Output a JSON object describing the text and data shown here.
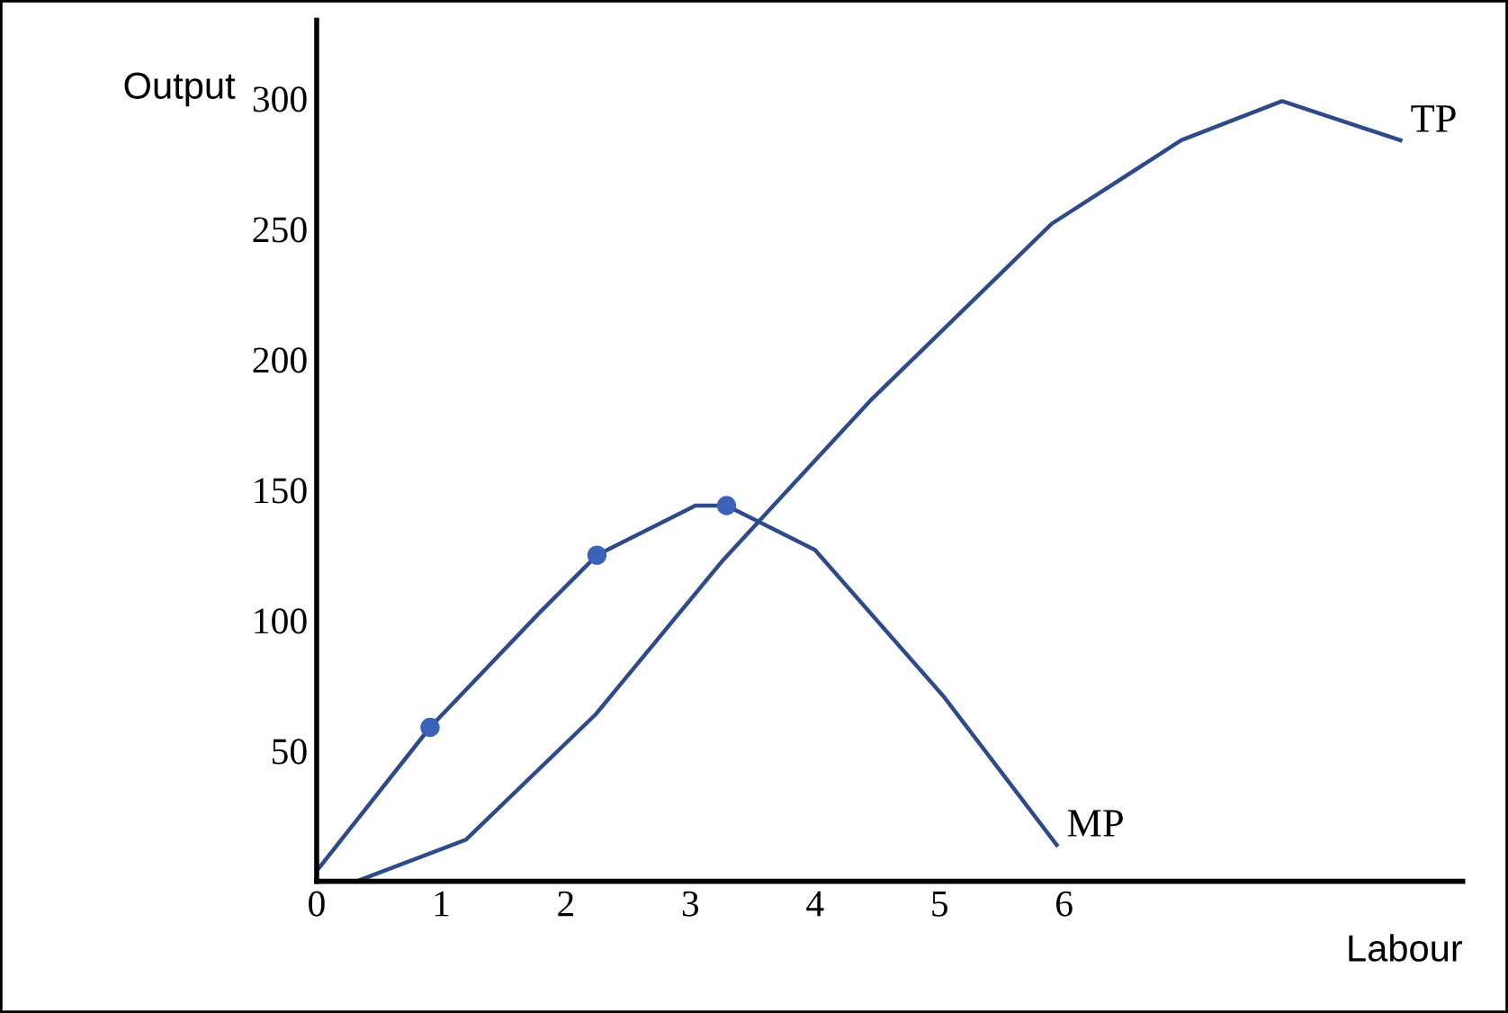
{
  "chart_data": {
    "type": "line",
    "xlabel": "Labour",
    "ylabel": "Output",
    "xlim": [
      0,
      9.2
    ],
    "ylim": [
      0,
      330
    ],
    "xticks": [
      0,
      1,
      2,
      3,
      4,
      5,
      6
    ],
    "yticks": [
      50,
      100,
      150,
      200,
      250,
      300
    ],
    "grid": false,
    "legend": false,
    "marker": "none",
    "line_style": "solid",
    "series": [
      {
        "name": "TP",
        "color": "#2e4a8b",
        "x": [
          0,
          0.32,
          1.2,
          2.24,
          3.26,
          4.44,
          5.9,
          6.94,
          7.75,
          8.7
        ],
        "values": [
          0,
          0,
          16,
          64,
          123,
          184,
          252,
          284,
          299,
          284
        ]
      },
      {
        "name": "MP",
        "color": "#2e4a8b",
        "x": [
          0,
          0.91,
          1.79,
          2.25,
          3.04,
          3.29,
          4,
          5.03,
          5.94
        ],
        "values": [
          4,
          59,
          103,
          125,
          144,
          144,
          127,
          71,
          14
        ]
      },
      {
        "type": "scatter",
        "color": "#3a62b8",
        "marker": "circle",
        "x": [
          0.91,
          2.25,
          3.29
        ],
        "values": [
          59,
          125,
          144
        ]
      }
    ]
  }
}
